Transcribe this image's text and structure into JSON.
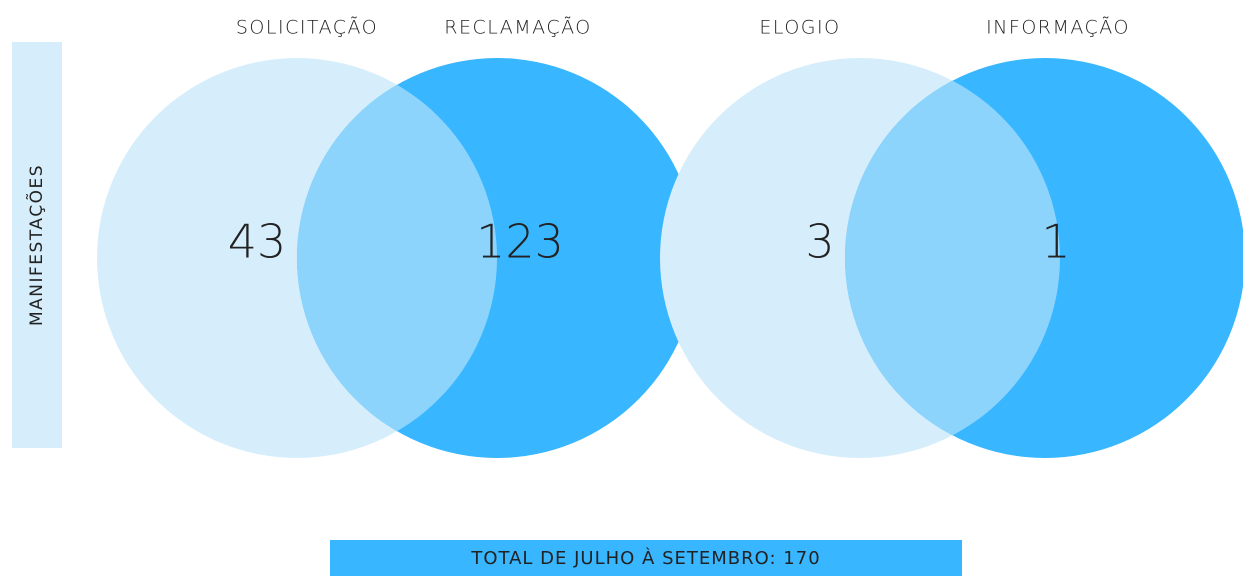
{
  "side_label": "MANIFESTAÇÕES",
  "groups": [
    {
      "label": "SOLICITAÇÃO",
      "value": 43
    },
    {
      "label": "RECLAMAÇÃO",
      "value": 123
    },
    {
      "label": "ELOGIO",
      "value": 3
    },
    {
      "label": "INFORMAÇÃO",
      "value": 1
    }
  ],
  "total": "TOTAL DE JULHO À SETEMBRO: 170"
}
